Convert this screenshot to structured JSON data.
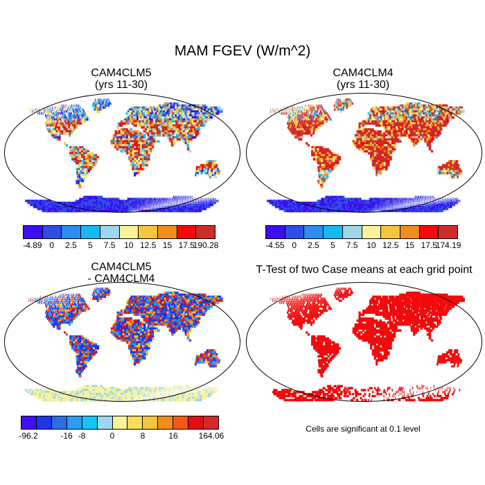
{
  "title": "MAM FGEV (W/m^2)",
  "panels": [
    {
      "id": "p1",
      "title_line1": "CAM4CLM5",
      "title_line2": "(yrs 11-30)",
      "palette": "full"
    },
    {
      "id": "p2",
      "title_line1": "CAM4CLM4",
      "title_line2": "(yrs 11-30)",
      "palette": "full"
    },
    {
      "id": "p3",
      "title_line1": "CAM4CLM5",
      "title_line2": "- CAM4CLM4",
      "palette": "diff"
    },
    {
      "id": "p4",
      "title_line1": "T-Test of two Case means at each grid point",
      "title_line2": "",
      "palette": "ttest"
    }
  ],
  "colorbars": [
    {
      "id": "cb1",
      "colors": [
        "#3b0ff0",
        "#2f4de6",
        "#2f8cf0",
        "#17b9f2",
        "#9fd6ec",
        "#f7f39c",
        "#f4c53e",
        "#f08d1c",
        "#f20a0c",
        "#cc2c2c"
      ],
      "labels": [
        "-4.89",
        "0",
        "2.5",
        "5",
        "7.5",
        "10",
        "12.5",
        "15",
        "17.5",
        "190.28"
      ]
    },
    {
      "id": "cb2",
      "colors": [
        "#3b0ff0",
        "#2f4de6",
        "#2f8cf0",
        "#17b9f2",
        "#9fd6ec",
        "#f7f39c",
        "#f4c53e",
        "#f08d1c",
        "#f20a0c",
        "#cc2c2c"
      ],
      "labels": [
        "-4.55",
        "0",
        "2.5",
        "5",
        "7.5",
        "10",
        "12.5",
        "15",
        "17.5",
        "174.19"
      ]
    },
    {
      "id": "cb3",
      "colors": [
        "#3b0ff0",
        "#1f35e8",
        "#2f6be6",
        "#2f9cf0",
        "#17c3f2",
        "#9fd6ec",
        "#f7f39c",
        "#f6dd5a",
        "#f4c53e",
        "#f08d1c",
        "#f05a14",
        "#e01010",
        "#d22a2a"
      ],
      "labels": [
        "-96.2",
        "-16",
        "-8",
        "0",
        "8",
        "16",
        "164.06"
      ]
    }
  ],
  "footnote": "Cells are significant at 0.1 level",
  "colors": {
    "full_low": "#2f4de6",
    "full_high": "#cc2c2c",
    "diff_neutral": "#f7f39c",
    "ttest": "#f20a0c"
  }
}
